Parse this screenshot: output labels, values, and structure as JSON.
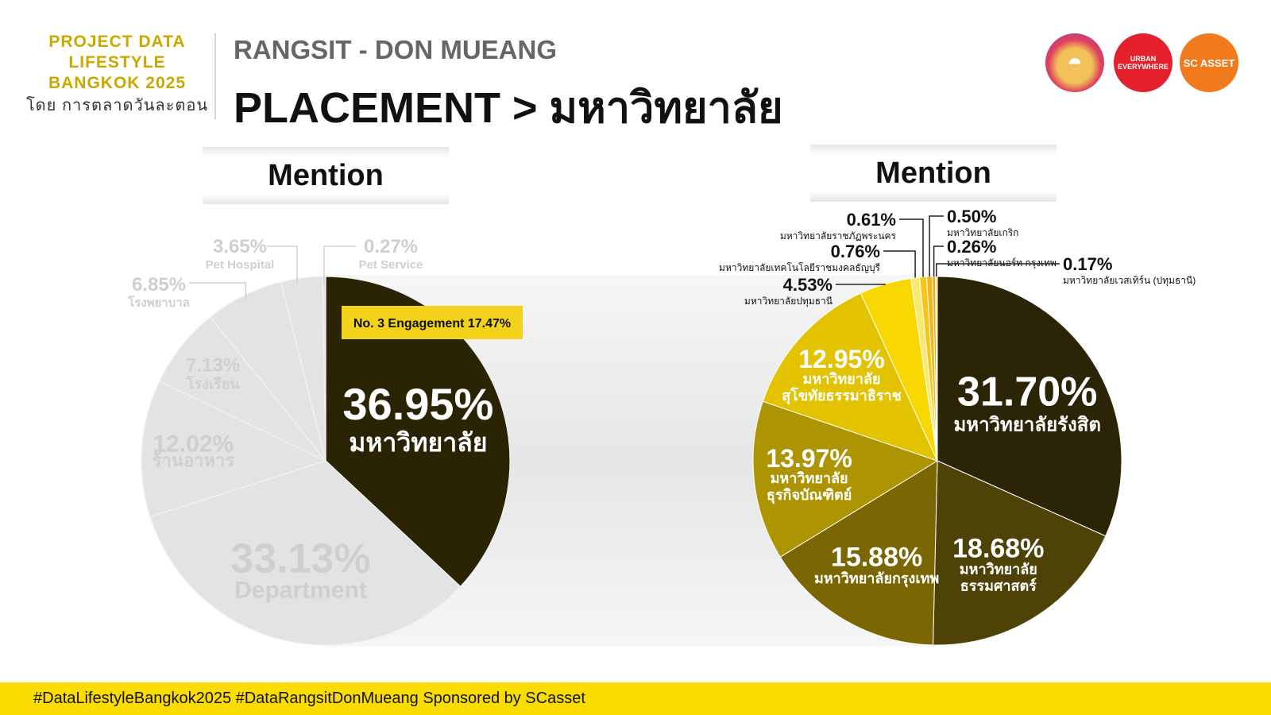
{
  "header": {
    "brand_line1": "PROJECT DATA",
    "brand_line2": "LIFESTYLE",
    "brand_line3": "BANGKOK 2025",
    "brand_by": "โดย การตลาดวันละตอน",
    "subtitle": "RANGSIT - DON MUEANG",
    "title": "PLACEMENT > มหาวิทยาลัย"
  },
  "logos": [
    {
      "name": "hat-logo",
      "icon": "straw-hat-icon"
    },
    {
      "name": "urban-everywhere-logo",
      "text": "URBAN EVERYWHERE"
    },
    {
      "name": "sc-asset-logo",
      "text": "SC ASSET"
    }
  ],
  "footer": {
    "text": "#DataLifestyleBangkok2025 #DataRangsitDonMueang Sponsored by SCasset"
  },
  "colors": {
    "highlight": "#2a2405",
    "faded": "#e3e3e3",
    "faded_text": "#cfcfcf",
    "accent_yellow": "#fadc00",
    "tag_bg": "#f3d21b"
  },
  "chart_data": [
    {
      "type": "pie",
      "title": "Mention",
      "highlight_tag": "No. 3 Engagement 17.47%",
      "slices": [
        {
          "label": "มหาวิทยาลัย",
          "pct_text": "36.95%",
          "value": 36.95,
          "highlight": true
        },
        {
          "label": "Department",
          "pct_text": "33.13%",
          "value": 33.13
        },
        {
          "label": "ร้านอาหาร",
          "pct_text": "12.02%",
          "value": 12.02
        },
        {
          "label": "โรงเรียน",
          "pct_text": "7.13%",
          "value": 7.13
        },
        {
          "label": "โรงพยาบาล",
          "pct_text": "6.85%",
          "value": 6.85
        },
        {
          "label": "Pet Hospital",
          "pct_text": "3.65%",
          "value": 3.65
        },
        {
          "label": "Pet Service",
          "pct_text": "0.27%",
          "value": 0.27
        }
      ]
    },
    {
      "type": "pie",
      "title": "Mention",
      "slices": [
        {
          "label": "มหาวิทยาลัยรังสิต",
          "pct_text": "31.70%",
          "value": 31.7,
          "color": "#2b2406"
        },
        {
          "label": "มหาวิทยาลัย ธรรมศาสตร์",
          "pct_text": "18.68%",
          "value": 18.68,
          "color": "#4f4206"
        },
        {
          "label": "มหาวิทยาลัยกรุงเทพ",
          "pct_text": "15.88%",
          "value": 15.88,
          "color": "#7b6604"
        },
        {
          "label": "มหาวิทยาลัย ธุรกิจบัณฑิตย์",
          "pct_text": "13.97%",
          "value": 13.97,
          "color": "#ad9402"
        },
        {
          "label": "มหาวิทยาลัย สุโขทัยธรรมาธิราช",
          "pct_text": "12.95%",
          "value": 12.95,
          "color": "#e3c200"
        },
        {
          "label": "มหาวิทยาลัยปทุมธานี",
          "pct_text": "4.53%",
          "value": 4.53,
          "color": "#f8d800"
        },
        {
          "label": "มหาวิทยาลัยเทคโนโลยีราชมงคลธัญบุรี",
          "pct_text": "0.76%",
          "value": 0.76,
          "color": "#fbe870"
        },
        {
          "label": "มหาวิทยาลัยราชภัฏพระนคร",
          "pct_text": "0.61%",
          "value": 0.61,
          "color": "#f5c518"
        },
        {
          "label": "มหาวิทยาลัยเกริก",
          "pct_text": "0.50%",
          "value": 0.5,
          "color": "#f0b81c"
        },
        {
          "label": "มหาวิทยาลัยนอร์ท กรุงเทพ",
          "pct_text": "0.26%",
          "value": 0.26,
          "color": "#e9a820"
        },
        {
          "label": "มหาวิทยาลัยเวสเทิร์น (ปทุมธานี)",
          "pct_text": "0.17%",
          "value": 0.17,
          "color": "#f7e46a"
        }
      ]
    }
  ]
}
